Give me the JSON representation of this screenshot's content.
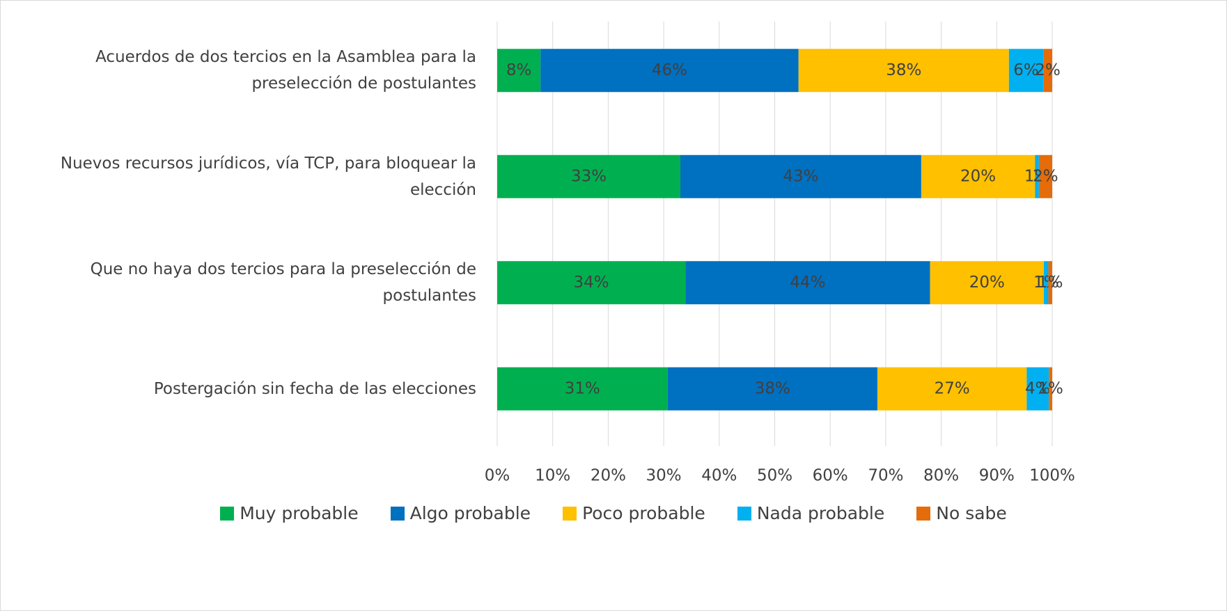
{
  "chart_data": {
    "type": "bar",
    "orientation": "horizontal",
    "stacked": true,
    "categories": [
      "Acuerdos de dos tercios en la Asamblea para la preselección de postulantes",
      "Nuevos recursos jurídicos, vía TCP, para bloquear la elección",
      "Que no haya dos tercios para la preselección de postulantes",
      "Postergación sin fecha de las elecciones"
    ],
    "series": [
      {
        "name": "Muy probable",
        "color": "#00b050",
        "values": [
          7.8,
          33,
          33.9,
          30.7
        ],
        "value_labels": [
          "8%",
          "33%",
          "34%",
          "31%"
        ]
      },
      {
        "name": "Algo probable",
        "color": "#0070c0",
        "values": [
          46.5,
          43.4,
          44.1,
          37.8
        ],
        "value_labels": [
          "46%",
          "43%",
          "44%",
          "38%"
        ]
      },
      {
        "name": "Poco probable",
        "color": "#ffc000",
        "values": [
          37.9,
          20.5,
          20.5,
          26.9
        ],
        "value_labels": [
          "38%",
          "20%",
          "20%",
          "27%"
        ]
      },
      {
        "name": "Nada probable",
        "color": "#00b0f0",
        "values": [
          6.2,
          0.7,
          0.8,
          4.0
        ],
        "value_labels": [
          "6%",
          "1%",
          "1%",
          "4%"
        ]
      },
      {
        "name": "No sabe",
        "color": "#e46c0a",
        "values": [
          1.6,
          2.4,
          0.7,
          0.6
        ],
        "value_labels": [
          "2%",
          "2%",
          "1%",
          "1%"
        ]
      }
    ],
    "xlim": [
      0,
      100
    ],
    "xticks": [
      {
        "value": 0,
        "label": "0%"
      },
      {
        "value": 10,
        "label": "10%"
      },
      {
        "value": 20,
        "label": "20%"
      },
      {
        "value": 30,
        "label": "30%"
      },
      {
        "value": 40,
        "label": "40%"
      },
      {
        "value": 50,
        "label": "50%"
      },
      {
        "value": 60,
        "label": "60%"
      },
      {
        "value": 70,
        "label": "70%"
      },
      {
        "value": 80,
        "label": "80%"
      },
      {
        "value": 90,
        "label": "90%"
      },
      {
        "value": 100,
        "label": "100%"
      }
    ],
    "grid": true,
    "legend": "bottom"
  }
}
